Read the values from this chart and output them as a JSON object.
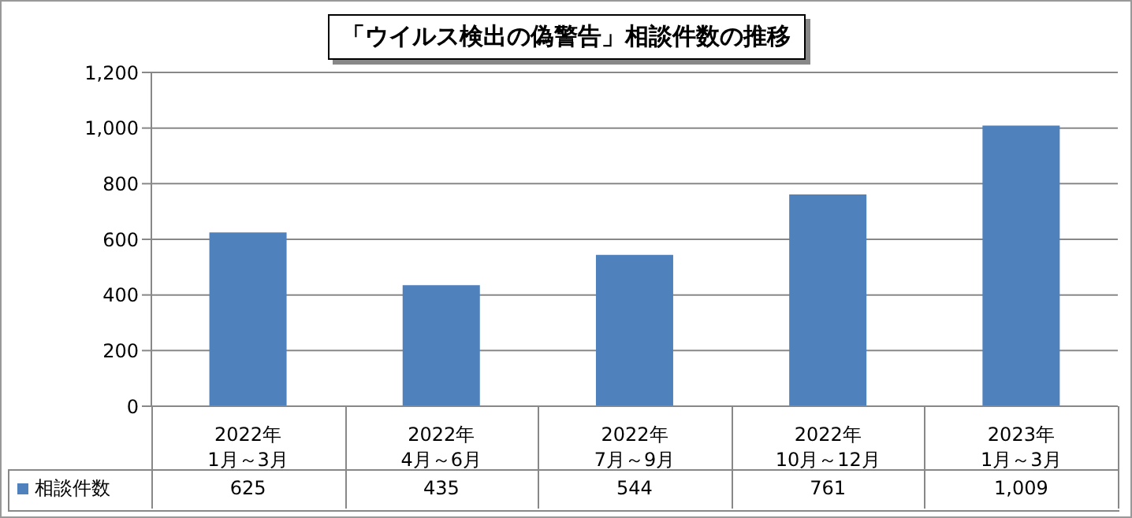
{
  "chart_data": {
    "type": "bar",
    "title": "「ウイルス検出の偽警告」相談件数の推移",
    "categories": [
      "2022年\n1月～3月",
      "2022年\n4月～6月",
      "2022年\n7月～9月",
      "2022年\n10月～12月",
      "2023年\n1月～3月"
    ],
    "series": [
      {
        "name": "相談件数",
        "color": "#4f81bd",
        "values": [
          625,
          435,
          544,
          761,
          1009
        ],
        "value_labels": [
          "625",
          "435",
          "544",
          "761",
          "1,009"
        ]
      }
    ],
    "ylim": [
      0,
      1200
    ],
    "yticks": [
      0,
      200,
      400,
      600,
      800,
      {
        "value": 1000,
        "label": "1,000"
      },
      {
        "value": 1200,
        "label": "1,200"
      }
    ],
    "grid": "y",
    "legend": "bottom"
  }
}
